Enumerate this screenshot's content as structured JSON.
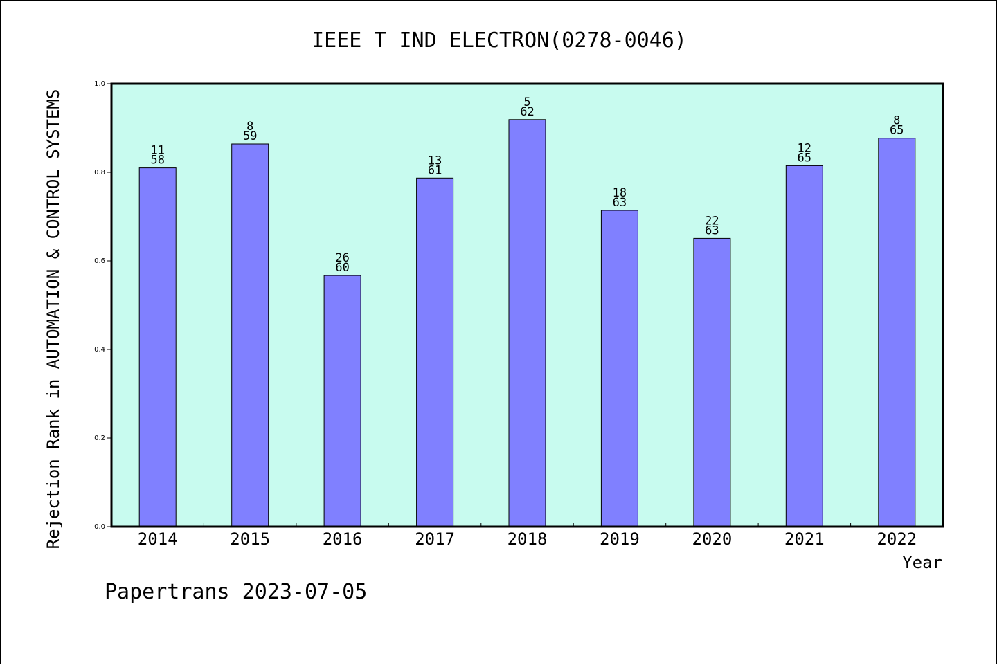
{
  "chart_data": {
    "type": "bar",
    "title": "IEEE T IND ELECTRON(0278-0046)",
    "xlabel": "Year",
    "ylabel": "Rejection Rank in AUTOMATION & CONTROL SYSTEMS",
    "ylim": [
      0.0,
      1.0
    ],
    "yticks": [
      "0.0",
      "0.2",
      "0.4",
      "0.6",
      "0.8",
      "1.0"
    ],
    "grid": false,
    "legend": "none",
    "categories": [
      "2014",
      "2015",
      "2016",
      "2017",
      "2018",
      "2019",
      "2020",
      "2021",
      "2022"
    ],
    "values": [
      0.81,
      0.864,
      0.567,
      0.787,
      0.919,
      0.714,
      0.651,
      0.815,
      0.877
    ],
    "ranks": [
      "11",
      "8",
      "26",
      "13",
      "5",
      "18",
      "22",
      "12",
      "8"
    ],
    "totals": [
      "58",
      "59",
      "60",
      "61",
      "62",
      "63",
      "63",
      "65",
      "65"
    ]
  },
  "footer": "Papertrans 2023-07-05",
  "colors": {
    "plot_background": "#c8fbef",
    "bar_fill": "#8080ff",
    "axis": "#000000",
    "text": "#000000"
  }
}
